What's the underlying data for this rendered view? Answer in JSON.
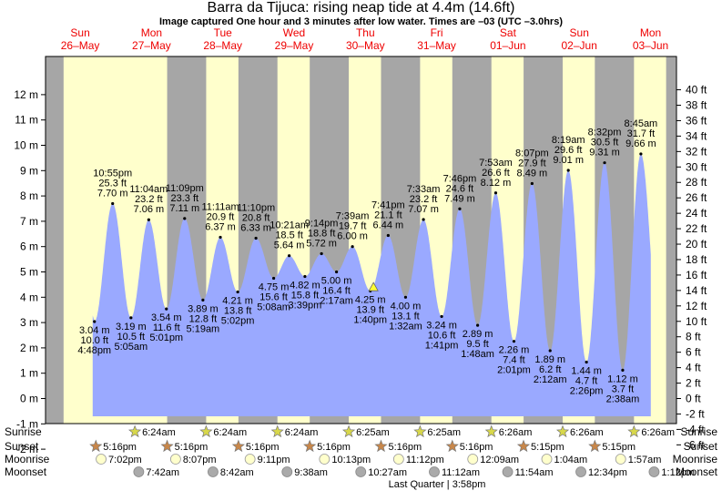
{
  "title": "Barra da Tijuca: rising  neap tide at 4.4m (14.6ft)",
  "subtitle": "Image captured One hour and 3 minutes after low water. Times are –03 (UTC –3.0hrs)",
  "colors": {
    "tide": "#9aa9ff",
    "day": "#ffffcc",
    "night": "#a6a6a6",
    "dayname": "#ee0000",
    "current": "#ffff33"
  },
  "days": [
    {
      "dow": "Sun",
      "date": "26–May"
    },
    {
      "dow": "Mon",
      "date": "27–May"
    },
    {
      "dow": "Tue",
      "date": "28–May"
    },
    {
      "dow": "Wed",
      "date": "29–May"
    },
    {
      "dow": "Thu",
      "date": "30–May"
    },
    {
      "dow": "Fri",
      "date": "31–May"
    },
    {
      "dow": "Sat",
      "date": "01–Jun"
    },
    {
      "dow": "Sun",
      "date": "02–Jun"
    },
    {
      "dow": "Mon",
      "date": "03–Jun"
    }
  ],
  "row_labels": [
    "Sunrise",
    "Sunset",
    "Moonrise",
    "Moonset"
  ],
  "sunrise": [
    "6:24am",
    "6:24am",
    "6:24am",
    "6:25am",
    "6:25am",
    "6:26am",
    "6:26am",
    "6:26am"
  ],
  "sunset": [
    "5:16pm",
    "5:16pm",
    "5:16pm",
    "5:16pm",
    "5:16pm",
    "5:16pm",
    "5:15pm",
    "5:15pm"
  ],
  "moonrise": [
    "7:02pm",
    "8:07pm",
    "9:11pm",
    "10:13pm",
    "11:12pm",
    "12:09am",
    "1:04am",
    "1:57am"
  ],
  "moonset": [
    "7:42am",
    "8:42am",
    "9:38am",
    "10:27am",
    "11:12am",
    "11:54am",
    "12:34pm",
    "1:12pm"
  ],
  "moon_phase": "Last Quarter | 3:58pm",
  "chart_data": {
    "type": "area",
    "title": "Barra da Tijuca: rising  neap tide at 4.4m (14.6ft)",
    "ylabel_left": "m",
    "ylabel_right": "ft",
    "ylim_m": [
      -2,
      12.5
    ],
    "yticks_m": [
      "-2 m",
      "-1 m",
      "0 m",
      "1 m",
      "2 m",
      "3 m",
      "4 m",
      "5 m",
      "6 m",
      "7 m",
      "8 m",
      "9 m",
      "10 m",
      "11 m",
      "12 m"
    ],
    "yticks_ft": [
      "-6 ft",
      "-4 ft",
      "-2 ft",
      "0 ft",
      "2 ft",
      "4 ft",
      "6 ft",
      "8 ft",
      "10 ft",
      "12 ft",
      "14 ft",
      "16 ft",
      "18 ft",
      "20 ft",
      "22 ft",
      "24 ft",
      "26 ft",
      "28 ft",
      "30 ft",
      "32 ft",
      "34 ft",
      "36 ft",
      "38 ft",
      "40 ft"
    ],
    "current_level_m": 4.4,
    "extremes": [
      {
        "day": 0,
        "hour": 16.8,
        "time": "4:48pm",
        "m": "3.04 m",
        "ft": "10.0 ft",
        "type": "low",
        "v": 3.04
      },
      {
        "day": 0,
        "hour": 22.917,
        "time": "10:55pm",
        "m": "7.70 m",
        "ft": "25.3 ft",
        "type": "high",
        "v": 7.7
      },
      {
        "day": 1,
        "hour": 5.083,
        "time": "5:05am",
        "m": "3.19 m",
        "ft": "10.5 ft",
        "type": "low",
        "v": 3.19
      },
      {
        "day": 1,
        "hour": 11.067,
        "time": "11:04am",
        "m": "7.06 m",
        "ft": "23.2 ft",
        "type": "high",
        "v": 7.06
      },
      {
        "day": 1,
        "hour": 17.017,
        "time": "5:01pm",
        "m": "3.54 m",
        "ft": "11.6 ft",
        "type": "low",
        "v": 3.54
      },
      {
        "day": 1,
        "hour": 23.15,
        "time": "11:09pm",
        "m": "7.11 m",
        "ft": "23.3 ft",
        "type": "high",
        "v": 7.11
      },
      {
        "day": 2,
        "hour": 5.317,
        "time": "5:19am",
        "m": "3.89 m",
        "ft": "12.8 ft",
        "type": "low",
        "v": 3.89
      },
      {
        "day": 2,
        "hour": 11.183,
        "time": "11:11am",
        "m": "6.37 m",
        "ft": "20.9 ft",
        "type": "high",
        "v": 6.37
      },
      {
        "day": 2,
        "hour": 17.033,
        "time": "5:02pm",
        "m": "4.21 m",
        "ft": "13.8 ft",
        "type": "low",
        "v": 4.21
      },
      {
        "day": 2,
        "hour": 23.167,
        "time": "11:10pm",
        "m": "6.33 m",
        "ft": "20.8 ft",
        "type": "high",
        "v": 6.33
      },
      {
        "day": 3,
        "hour": 5.133,
        "time": "5:08am",
        "m": "4.75 m",
        "ft": "15.6 ft",
        "type": "low",
        "v": 4.75
      },
      {
        "day": 3,
        "hour": 10.35,
        "time": "10:21am",
        "m": "5.64 m",
        "ft": "18.5 ft",
        "type": "high",
        "v": 5.64
      },
      {
        "day": 3,
        "hour": 15.65,
        "time": "3:39pm",
        "m": "4.82 m",
        "ft": "15.8 ft",
        "type": "low",
        "v": 4.82
      },
      {
        "day": 3,
        "hour": 21.233,
        "time": "9:14pm",
        "m": "5.72 m",
        "ft": "18.8 ft",
        "type": "high",
        "v": 5.72
      },
      {
        "day": 4,
        "hour": 2.283,
        "time": "2:17am",
        "m": "5.00 m",
        "ft": "16.4 ft",
        "type": "low",
        "v": 5.0
      },
      {
        "day": 4,
        "hour": 7.65,
        "time": "7:39am",
        "m": "6.00 m",
        "ft": "19.7 ft",
        "type": "high",
        "v": 6.0
      },
      {
        "day": 4,
        "hour": 13.667,
        "time": "1:40pm",
        "m": "4.25 m",
        "ft": "13.9 ft",
        "type": "low",
        "v": 4.25
      },
      {
        "day": 4,
        "hour": 19.683,
        "time": "7:41pm",
        "m": "6.44 m",
        "ft": "21.1 ft",
        "type": "high",
        "v": 6.44
      },
      {
        "day": 5,
        "hour": 1.533,
        "time": "1:32am",
        "m": "4.00 m",
        "ft": "13.1 ft",
        "type": "low",
        "v": 4.0
      },
      {
        "day": 5,
        "hour": 7.55,
        "time": "7:33am",
        "m": "7.07 m",
        "ft": "23.2 ft",
        "type": "high",
        "v": 7.07
      },
      {
        "day": 5,
        "hour": 13.683,
        "time": "1:41pm",
        "m": "3.24 m",
        "ft": "10.6 ft",
        "type": "low",
        "v": 3.24
      },
      {
        "day": 5,
        "hour": 19.767,
        "time": "7:46pm",
        "m": "7.49 m",
        "ft": "24.6 ft",
        "type": "high",
        "v": 7.49
      },
      {
        "day": 6,
        "hour": 1.8,
        "time": "1:48am",
        "m": "2.89 m",
        "ft": "9.5 ft",
        "type": "low",
        "v": 2.89
      },
      {
        "day": 6,
        "hour": 7.883,
        "time": "7:53am",
        "m": "8.12 m",
        "ft": "26.6 ft",
        "type": "high",
        "v": 8.12
      },
      {
        "day": 6,
        "hour": 14.017,
        "time": "2:01pm",
        "m": "2.26 m",
        "ft": "7.4 ft",
        "type": "low",
        "v": 2.26
      },
      {
        "day": 6,
        "hour": 20.117,
        "time": "8:07pm",
        "m": "8.49 m",
        "ft": "27.9 ft",
        "type": "high",
        "v": 8.49
      },
      {
        "day": 7,
        "hour": 2.2,
        "time": "2:12am",
        "m": "1.89 m",
        "ft": "6.2 ft",
        "type": "low",
        "v": 1.89
      },
      {
        "day": 7,
        "hour": 8.317,
        "time": "8:19am",
        "m": "9.01 m",
        "ft": "29.6 ft",
        "type": "high",
        "v": 9.01
      },
      {
        "day": 7,
        "hour": 14.433,
        "time": "2:26pm",
        "m": "1.44 m",
        "ft": "4.7 ft",
        "type": "low",
        "v": 1.44
      },
      {
        "day": 7,
        "hour": 20.533,
        "time": "8:32pm",
        "m": "9.31 m",
        "ft": "30.5 ft",
        "type": "high",
        "v": 9.31
      },
      {
        "day": 8,
        "hour": 2.633,
        "time": "2:38am",
        "m": "1.12 m",
        "ft": "3.7 ft",
        "type": "low",
        "v": 1.12
      },
      {
        "day": 8,
        "hour": 8.75,
        "time": "8:45am",
        "m": "9.66 m",
        "ft": "31.7 ft",
        "type": "high",
        "v": 9.66
      }
    ]
  }
}
